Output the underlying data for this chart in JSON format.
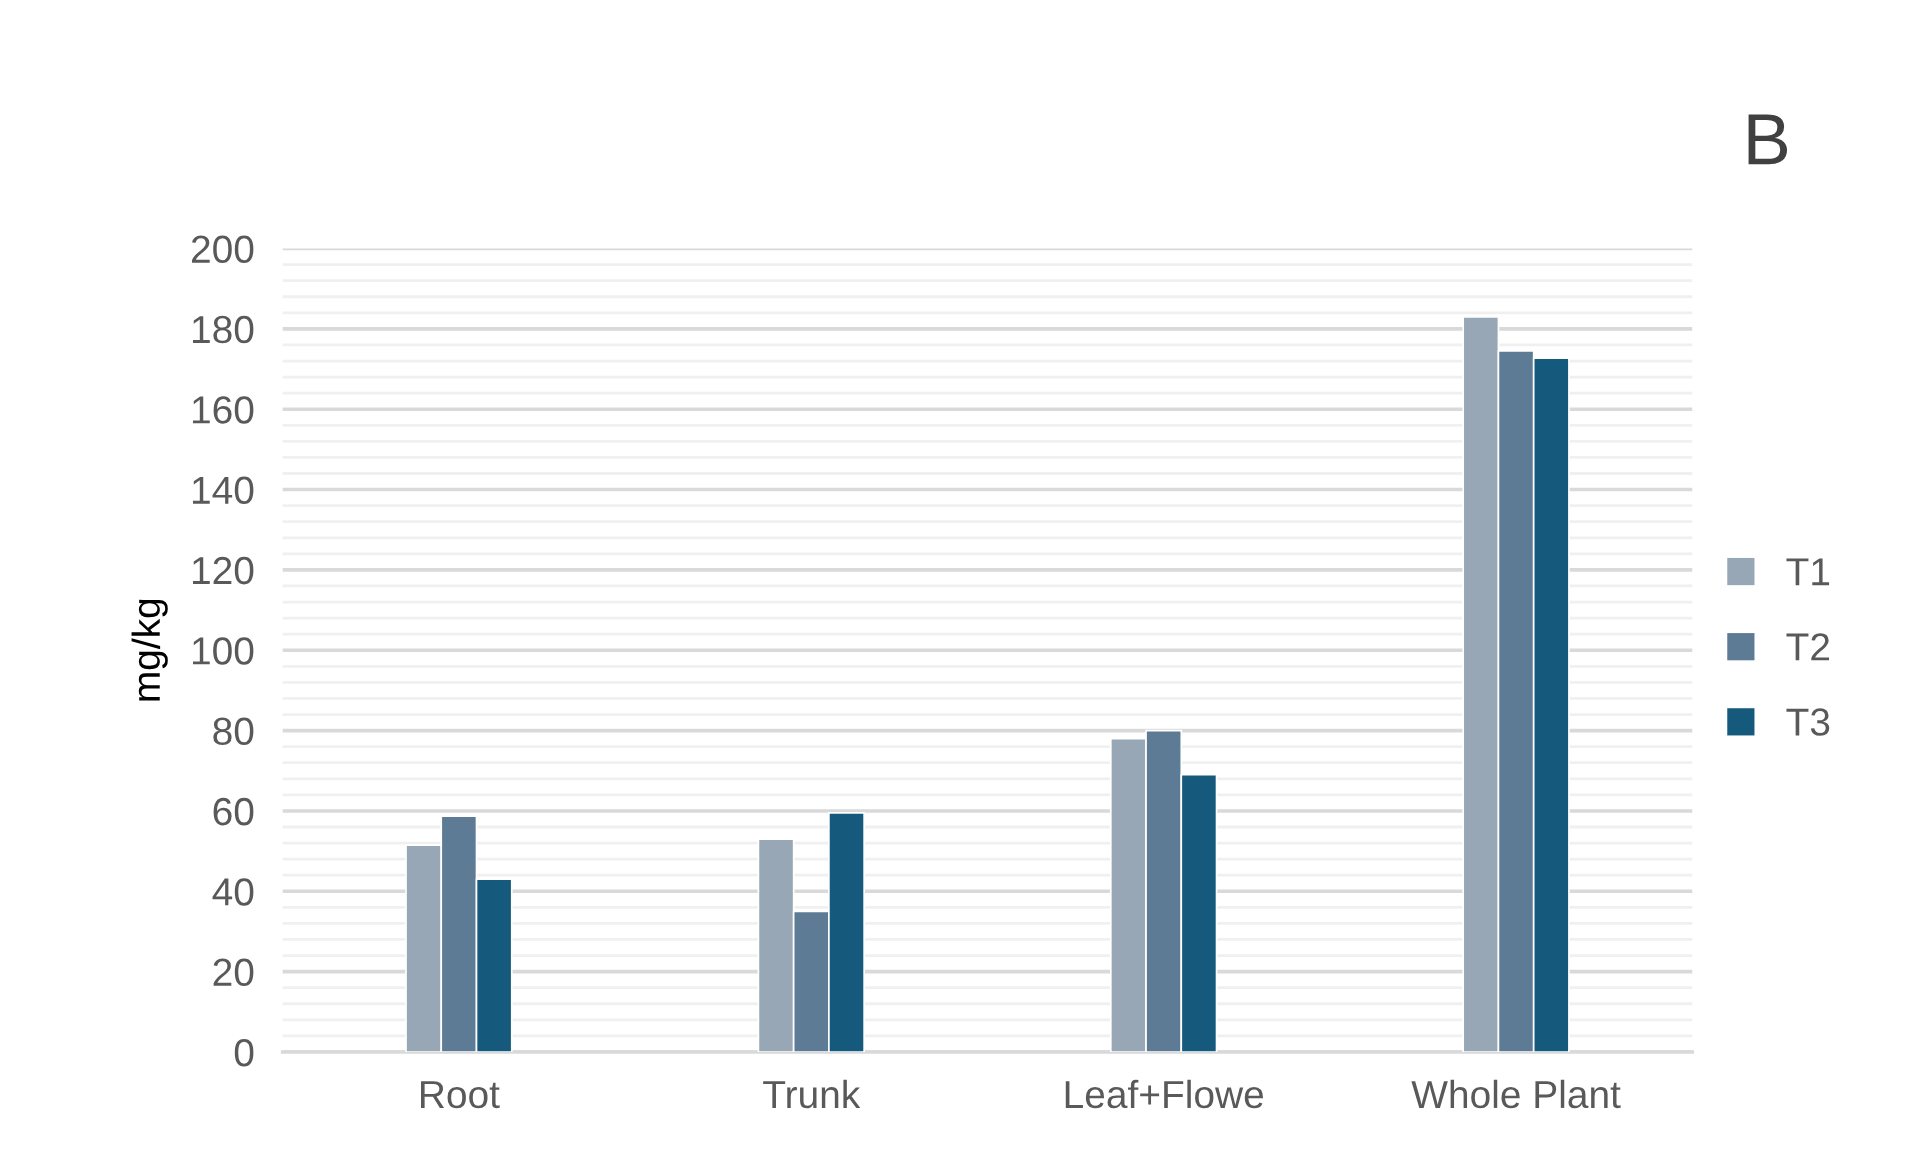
{
  "chart_data": {
    "type": "bar",
    "title": "B",
    "ylabel": "mg/kg",
    "categories": [
      "Root",
      "Trunk",
      "Leaf+Flowe",
      "Whole Plant"
    ],
    "series": [
      {
        "name": "T1",
        "color": "#97a7b5",
        "values": [
          51.5,
          53,
          78,
          183
        ]
      },
      {
        "name": "T2",
        "color": "#5d7b94",
        "values": [
          58.7,
          35,
          80,
          174.5
        ]
      },
      {
        "name": "T3",
        "color": "#155a7c",
        "values": [
          43,
          59.5,
          69,
          172.7
        ]
      }
    ],
    "ylim": [
      0,
      200
    ],
    "yticks": [
      0,
      {
        "value": 4,
        "label": null
      },
      {
        "value": 8,
        "label": null
      },
      {
        "value": 12,
        "label": null
      },
      {
        "value": 16,
        "label": null
      },
      20,
      {
        "value": 24,
        "label": null
      },
      {
        "value": 28,
        "label": null
      },
      {
        "value": 32,
        "label": null
      },
      {
        "value": 36,
        "label": null
      },
      40,
      {
        "value": 44,
        "label": null
      },
      {
        "value": 48,
        "label": null
      },
      {
        "value": 52,
        "label": null
      },
      {
        "value": 56,
        "label": null
      },
      60,
      {
        "value": 64,
        "label": null
      },
      {
        "value": 68,
        "label": null
      },
      {
        "value": 72,
        "label": null
      },
      {
        "value": 76,
        "label": null
      },
      80,
      {
        "value": 84,
        "label": null
      },
      {
        "value": 88,
        "label": null
      },
      {
        "value": 92,
        "label": null
      },
      {
        "value": 96,
        "label": null
      },
      100,
      {
        "value": 104,
        "label": null
      },
      {
        "value": 108,
        "label": null
      },
      {
        "value": 112,
        "label": null
      },
      {
        "value": 116,
        "label": null
      },
      120,
      {
        "value": 124,
        "label": null
      },
      {
        "value": 128,
        "label": null
      },
      {
        "value": 132,
        "label": null
      },
      {
        "value": 136,
        "label": null
      },
      140,
      {
        "value": 144,
        "label": null
      },
      {
        "value": 148,
        "label": null
      },
      {
        "value": 152,
        "label": null
      },
      {
        "value": 156,
        "label": null
      },
      160,
      {
        "value": 164,
        "label": null
      },
      {
        "value": 168,
        "label": null
      },
      {
        "value": 172,
        "label": null
      },
      {
        "value": 176,
        "label": null
      },
      180,
      {
        "value": 184,
        "label": null
      },
      {
        "value": 188,
        "label": null
      },
      {
        "value": 192,
        "label": null
      },
      {
        "value": 196,
        "label": null
      },
      200
    ],
    "grid": "y",
    "legend": "right"
  }
}
